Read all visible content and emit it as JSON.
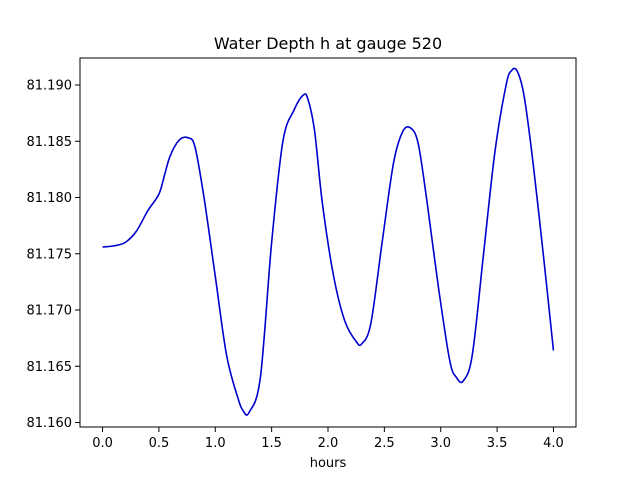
{
  "chart_data": {
    "type": "line",
    "title": "Water Depth h at gauge 520",
    "xlabel": "hours",
    "ylabel": "",
    "xlim": [
      -0.2,
      4.2
    ],
    "ylim": [
      81.1596,
      81.1924
    ],
    "xticks": [
      0.0,
      0.5,
      1.0,
      1.5,
      2.0,
      2.5,
      3.0,
      3.5,
      4.0
    ],
    "xtick_labels": [
      "0.0",
      "0.5",
      "1.0",
      "1.5",
      "2.0",
      "2.5",
      "3.0",
      "3.5",
      "4.0"
    ],
    "yticks": [
      81.16,
      81.165,
      81.17,
      81.175,
      81.18,
      81.185,
      81.19
    ],
    "ytick_labels": [
      "81.160",
      "81.165",
      "81.170",
      "81.175",
      "81.180",
      "81.185",
      "81.190"
    ],
    "grid": false,
    "series": [
      {
        "color": "#0000cc",
        "x": [
          0.0,
          0.1,
          0.2,
          0.3,
          0.4,
          0.5,
          0.55,
          0.6,
          0.68,
          0.76,
          0.82,
          0.9,
          1.0,
          1.1,
          1.2,
          1.25,
          1.3,
          1.4,
          1.5,
          1.6,
          1.7,
          1.78,
          1.82,
          1.88,
          1.95,
          2.05,
          2.15,
          2.25,
          2.3,
          2.38,
          2.48,
          2.58,
          2.66,
          2.73,
          2.8,
          2.88,
          2.98,
          3.08,
          3.14,
          3.2,
          3.28,
          3.38,
          3.48,
          3.58,
          3.63,
          3.68,
          3.74,
          3.82,
          3.92,
          4.0
        ],
        "y": [
          81.1756,
          81.1757,
          81.176,
          81.177,
          81.1788,
          81.1803,
          81.182,
          81.1837,
          81.1851,
          81.1853,
          81.1845,
          81.18,
          81.173,
          81.166,
          81.1622,
          81.161,
          81.1609,
          81.164,
          81.176,
          81.185,
          81.1878,
          81.1891,
          81.1888,
          81.186,
          81.1795,
          81.173,
          81.169,
          81.1672,
          81.167,
          81.1688,
          81.176,
          81.183,
          81.1858,
          81.1862,
          81.1848,
          81.1795,
          81.172,
          81.1655,
          81.164,
          81.1637,
          81.166,
          81.175,
          81.184,
          81.19,
          81.1913,
          81.1912,
          81.189,
          81.183,
          81.174,
          81.1664
        ]
      }
    ]
  }
}
